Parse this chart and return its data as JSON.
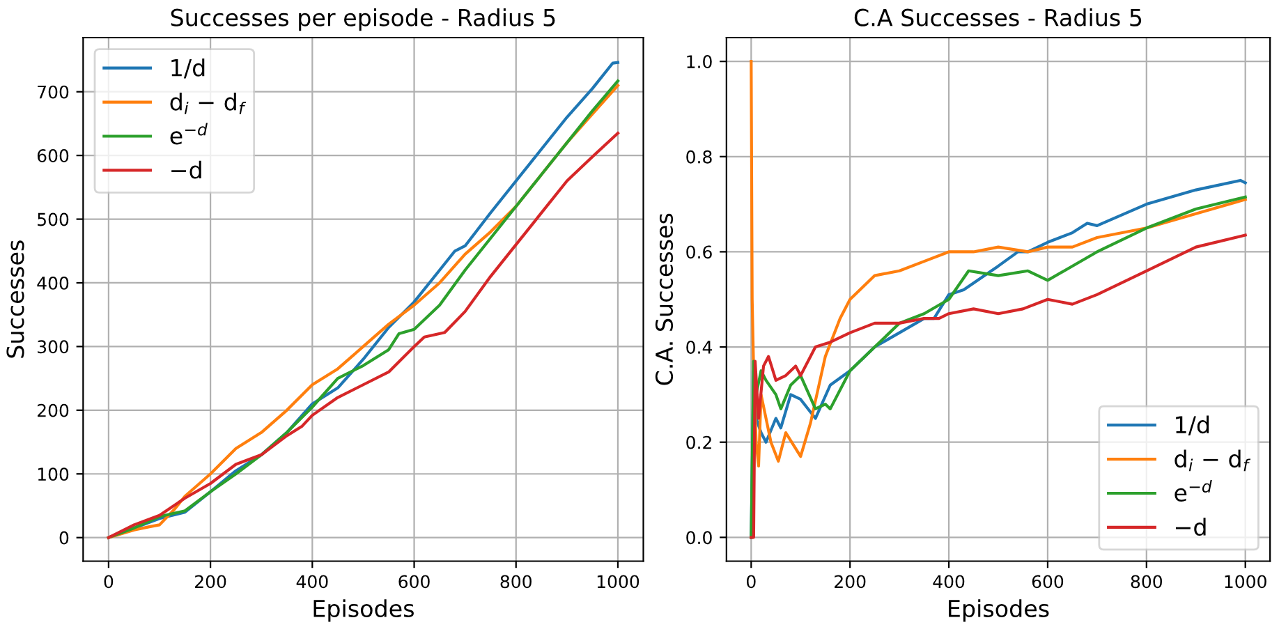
{
  "chart_data": [
    {
      "type": "line",
      "title": "Successes per episode - Radius 5",
      "xlabel": "Episodes",
      "ylabel": "Successes",
      "xlim": [
        -50,
        1050
      ],
      "ylim": [
        -37,
        785
      ],
      "xticks": [
        0,
        200,
        400,
        600,
        800,
        1000
      ],
      "yticks": [
        0,
        100,
        200,
        300,
        400,
        500,
        600,
        700
      ],
      "grid": true,
      "legend": "top left",
      "line_style": "solid",
      "marker": "none",
      "series": [
        {
          "name": "1/d",
          "color": "#1f77b4",
          "x": [
            0,
            50,
            100,
            150,
            200,
            250,
            300,
            350,
            400,
            450,
            500,
            550,
            600,
            650,
            680,
            700,
            750,
            800,
            850,
            900,
            950,
            990,
            1000
          ],
          "values": [
            0,
            15,
            30,
            40,
            72,
            105,
            130,
            165,
            210,
            235,
            280,
            330,
            370,
            420,
            450,
            458,
            510,
            560,
            610,
            660,
            705,
            745,
            746
          ]
        },
        {
          "name": "d$_{i}$ − d$_{f}$",
          "color": "#ff7f0e",
          "x": [
            0,
            50,
            80,
            100,
            130,
            150,
            200,
            250,
            300,
            350,
            400,
            450,
            500,
            550,
            600,
            650,
            700,
            750,
            800,
            850,
            900,
            950,
            1000
          ],
          "values": [
            0,
            12,
            17,
            20,
            45,
            65,
            100,
            140,
            165,
            200,
            240,
            265,
            300,
            335,
            365,
            400,
            445,
            480,
            520,
            570,
            620,
            665,
            710
          ]
        },
        {
          "name": "e$^{−d}$",
          "color": "#2ca02c",
          "x": [
            0,
            50,
            100,
            150,
            200,
            250,
            300,
            350,
            400,
            450,
            500,
            550,
            570,
            600,
            650,
            700,
            750,
            800,
            850,
            900,
            950,
            1000
          ],
          "values": [
            0,
            15,
            33,
            42,
            72,
            100,
            130,
            165,
            205,
            250,
            270,
            295,
            320,
            327,
            365,
            420,
            470,
            520,
            570,
            620,
            670,
            717
          ]
        },
        {
          "name": "−d",
          "color": "#d62728",
          "x": [
            0,
            50,
            100,
            150,
            200,
            250,
            300,
            350,
            380,
            400,
            450,
            500,
            550,
            600,
            620,
            660,
            700,
            750,
            800,
            850,
            900,
            950,
            1000
          ],
          "values": [
            0,
            20,
            35,
            62,
            85,
            115,
            130,
            160,
            175,
            192,
            220,
            240,
            260,
            300,
            315,
            322,
            355,
            410,
            460,
            510,
            560,
            598,
            635
          ]
        }
      ]
    },
    {
      "type": "line",
      "title": "C.A Successes - Radius 5",
      "xlabel": "Episodes",
      "ylabel": "C.A. Successes",
      "xlim": [
        -50,
        1050
      ],
      "ylim": [
        -0.05,
        1.05
      ],
      "xticks": [
        0,
        200,
        400,
        600,
        800,
        1000
      ],
      "yticks": [
        {
          "value": 0,
          "label": "0.0"
        },
        0.2,
        0.4,
        0.6,
        0.8,
        {
          "value": 1,
          "label": "1.0"
        }
      ],
      "grid": true,
      "legend": "bottom right",
      "line_style": "solid",
      "marker": "none",
      "series": [
        {
          "name": "1/d",
          "color": "#1f77b4",
          "x": [
            0,
            5,
            10,
            20,
            30,
            50,
            60,
            80,
            100,
            130,
            160,
            200,
            250,
            300,
            350,
            370,
            400,
            430,
            500,
            540,
            560,
            600,
            650,
            680,
            700,
            800,
            900,
            990,
            1000
          ],
          "values": [
            0,
            0.35,
            0.25,
            0.22,
            0.2,
            0.25,
            0.23,
            0.3,
            0.29,
            0.25,
            0.32,
            0.35,
            0.4,
            0.43,
            0.46,
            0.46,
            0.51,
            0.52,
            0.57,
            0.6,
            0.6,
            0.62,
            0.64,
            0.66,
            0.655,
            0.7,
            0.73,
            0.75,
            0.745
          ]
        },
        {
          "name": "d$_{i}$ − d$_{f}$",
          "color": "#ff7f0e",
          "x": [
            0,
            2,
            5,
            10,
            15,
            20,
            30,
            40,
            55,
            70,
            100,
            120,
            150,
            180,
            200,
            250,
            300,
            350,
            400,
            450,
            500,
            560,
            600,
            650,
            700,
            800,
            900,
            1000
          ],
          "values": [
            1.0,
            0.5,
            0.35,
            0.2,
            0.15,
            0.3,
            0.25,
            0.2,
            0.16,
            0.22,
            0.17,
            0.24,
            0.38,
            0.46,
            0.5,
            0.55,
            0.56,
            0.58,
            0.6,
            0.6,
            0.61,
            0.6,
            0.61,
            0.61,
            0.63,
            0.65,
            0.68,
            0.71
          ]
        },
        {
          "name": "e$^{−d}$",
          "color": "#2ca02c",
          "x": [
            0,
            5,
            10,
            20,
            30,
            50,
            60,
            80,
            100,
            130,
            150,
            160,
            200,
            250,
            300,
            350,
            400,
            440,
            500,
            560,
            600,
            700,
            800,
            900,
            1000
          ],
          "values": [
            0,
            0.37,
            0.3,
            0.35,
            0.33,
            0.3,
            0.27,
            0.32,
            0.34,
            0.27,
            0.28,
            0.27,
            0.35,
            0.4,
            0.45,
            0.47,
            0.5,
            0.56,
            0.55,
            0.56,
            0.54,
            0.6,
            0.65,
            0.69,
            0.715
          ]
        },
        {
          "name": "−d",
          "color": "#d62728",
          "x": [
            0,
            5,
            8,
            15,
            25,
            35,
            50,
            70,
            90,
            100,
            130,
            160,
            200,
            250,
            300,
            350,
            380,
            400,
            450,
            500,
            550,
            600,
            650,
            700,
            800,
            900,
            1000
          ],
          "values": [
            0,
            0,
            0.37,
            0.25,
            0.36,
            0.38,
            0.33,
            0.34,
            0.36,
            0.34,
            0.4,
            0.41,
            0.43,
            0.45,
            0.45,
            0.46,
            0.46,
            0.47,
            0.48,
            0.47,
            0.48,
            0.5,
            0.49,
            0.51,
            0.56,
            0.61,
            0.635
          ]
        }
      ]
    }
  ]
}
